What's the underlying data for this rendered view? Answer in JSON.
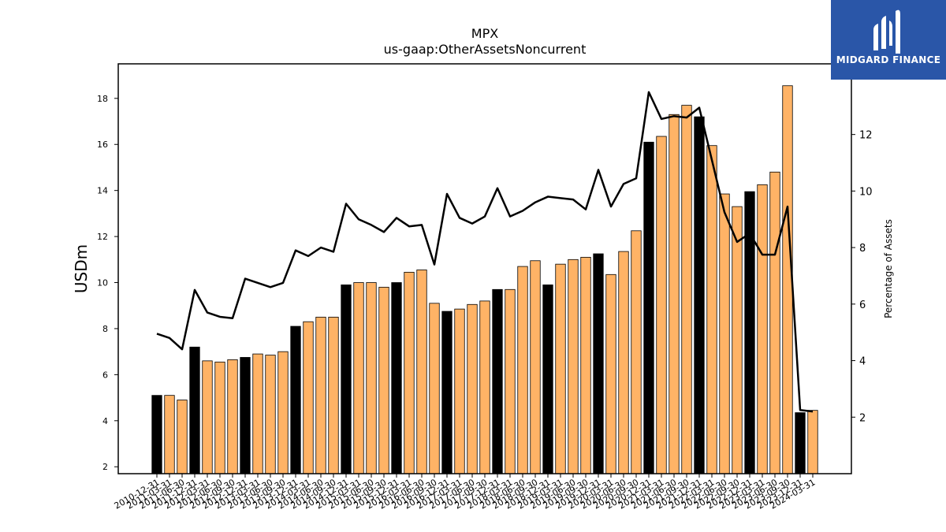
{
  "chart_data": {
    "type": "bar+line",
    "title": "MPX",
    "subtitle": "us-gaap:OtherAssetsNoncurrent",
    "ylabel": "USDm",
    "y2label": "Percentage of Assets",
    "ylim": [
      1.7,
      19.5
    ],
    "y2lim": [
      0,
      14.5
    ],
    "yticks": [
      2,
      4,
      6,
      8,
      10,
      12,
      14,
      16,
      18
    ],
    "y2ticks": [
      2,
      4,
      6,
      8,
      10,
      12
    ],
    "categories": [
      "2010-12-31",
      "2011-03-31",
      "2011-06-30",
      "2011-12-31",
      "2012-03-31",
      "2012-06-30",
      "2012-09-30",
      "2012-12-31",
      "2013-03-31",
      "2013-06-30",
      "2013-09-30",
      "2013-12-31",
      "2014-03-31",
      "2014-06-30",
      "2014-09-30",
      "2014-12-31",
      "2015-03-31",
      "2015-06-30",
      "2015-09-30",
      "2015-12-31",
      "2016-03-31",
      "2016-06-30",
      "2016-09-30",
      "2016-12-31",
      "2017-03-31",
      "2017-06-30",
      "2017-09-30",
      "2017-12-31",
      "2018-03-31",
      "2018-06-30",
      "2018-09-30",
      "2018-12-31",
      "2019-03-31",
      "2019-06-30",
      "2019-09-30",
      "2019-12-31",
      "2020-03-31",
      "2020-06-30",
      "2020-09-30",
      "2020-12-31",
      "2021-03-31",
      "2021-06-30",
      "2021-09-30",
      "2021-12-31",
      "2022-03-31",
      "2022-06-30",
      "2022-09-30",
      "2022-12-31",
      "2023-03-31",
      "2023-06-30",
      "2023-09-30",
      "2023-12-31",
      "2024-03-31"
    ],
    "values": [
      5.1,
      5.1,
      4.9,
      7.2,
      6.6,
      6.55,
      6.65,
      6.75,
      6.9,
      6.85,
      7.0,
      8.1,
      8.3,
      8.5,
      8.5,
      9.9,
      10.0,
      10.0,
      9.8,
      10.0,
      10.45,
      10.55,
      9.1,
      8.75,
      8.85,
      9.05,
      9.2,
      9.7,
      9.7,
      10.7,
      10.95,
      9.9,
      10.8,
      11.0,
      11.1,
      11.25,
      10.35,
      11.35,
      12.25,
      16.1,
      16.35,
      17.3,
      17.7,
      17.2,
      15.95,
      13.85,
      13.3,
      13.95,
      14.25,
      14.8,
      18.55,
      4.35,
      4.45
    ],
    "year_end": [
      true,
      false,
      false,
      true,
      false,
      false,
      false,
      true,
      false,
      false,
      false,
      true,
      false,
      false,
      false,
      true,
      false,
      false,
      false,
      true,
      false,
      false,
      false,
      true,
      false,
      false,
      false,
      true,
      false,
      false,
      false,
      true,
      false,
      false,
      false,
      true,
      false,
      false,
      false,
      true,
      false,
      false,
      false,
      true,
      false,
      false,
      false,
      true,
      false,
      false,
      false,
      true,
      false
    ],
    "pct_assets": [
      4.95,
      4.8,
      4.4,
      6.5,
      5.7,
      5.55,
      5.5,
      6.9,
      6.75,
      6.6,
      6.75,
      7.9,
      7.7,
      8.0,
      7.85,
      9.55,
      9.0,
      8.8,
      8.55,
      9.05,
      8.75,
      8.8,
      7.4,
      9.9,
      9.05,
      8.85,
      9.1,
      10.1,
      9.1,
      9.3,
      9.6,
      9.8,
      9.75,
      9.7,
      9.35,
      10.75,
      9.45,
      10.25,
      10.45,
      13.5,
      12.55,
      12.65,
      12.6,
      12.95,
      11.1,
      9.25,
      8.2,
      8.5,
      7.75,
      7.75,
      9.45,
      2.25,
      2.2
    ],
    "colors": {
      "bar": "#ffb366",
      "bar_year_end": "#000000",
      "line": "#000000"
    }
  },
  "logo": {
    "text": "MIDGARD FINANCE",
    "bg": "#2a56a8"
  }
}
